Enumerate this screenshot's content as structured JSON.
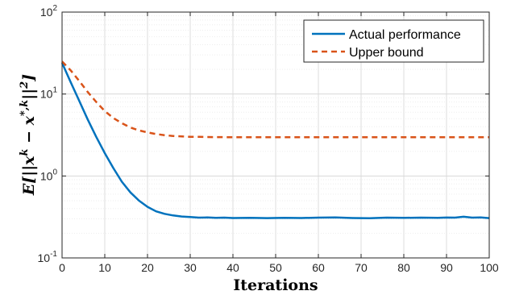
{
  "chart_data": {
    "type": "line",
    "title": "",
    "xlabel": "Iterations",
    "ylabel": "E[||x^k − x^{*,k}||^2]",
    "ylabel_parts": {
      "lead": "E[||",
      "x": "x",
      "sup_k": "k",
      "minus": " − ",
      "x2": "x",
      "sup_star": "*,k",
      "tail": "||",
      "sup_2": "2",
      "close": "]"
    },
    "xlim": [
      0,
      100
    ],
    "ylim": [
      0.1,
      100
    ],
    "yscale": "log",
    "grid": true,
    "legend_position": "top-right",
    "x_ticks": [
      "0",
      "10",
      "20",
      "30",
      "40",
      "50",
      "60",
      "70",
      "80",
      "90",
      "100"
    ],
    "y_ticks": [
      {
        "base": "10",
        "exp": "-1"
      },
      {
        "base": "10",
        "exp": "0"
      },
      {
        "base": "10",
        "exp": "1"
      },
      {
        "base": "10",
        "exp": "2"
      }
    ],
    "series": [
      {
        "name": "Actual performance",
        "color": "#0072BD",
        "style": "solid",
        "x": [
          0,
          2,
          4,
          6,
          8,
          10,
          12,
          14,
          16,
          18,
          20,
          22,
          24,
          26,
          28,
          30,
          32,
          34,
          36,
          38,
          40,
          44,
          48,
          52,
          56,
          60,
          64,
          68,
          72,
          76,
          80,
          84,
          88,
          90,
          92,
          94,
          96,
          98,
          100
        ],
        "y": [
          24,
          14,
          8.3,
          4.9,
          3.0,
          1.9,
          1.25,
          0.85,
          0.63,
          0.5,
          0.42,
          0.37,
          0.345,
          0.33,
          0.32,
          0.315,
          0.31,
          0.312,
          0.308,
          0.31,
          0.307,
          0.309,
          0.306,
          0.309,
          0.307,
          0.31,
          0.312,
          0.307,
          0.305,
          0.31,
          0.308,
          0.31,
          0.309,
          0.311,
          0.31,
          0.318,
          0.31,
          0.312,
          0.306
        ]
      },
      {
        "name": "Upper bound",
        "color": "#D95319",
        "style": "dashed",
        "x": [
          0,
          2,
          4,
          6,
          8,
          10,
          12,
          14,
          16,
          18,
          20,
          22,
          24,
          26,
          28,
          30,
          32,
          34,
          36,
          40,
          50,
          60,
          70,
          80,
          90,
          100
        ],
        "y": [
          25,
          19.5,
          14.5,
          10.6,
          8.0,
          6.2,
          5.1,
          4.4,
          3.9,
          3.6,
          3.4,
          3.25,
          3.15,
          3.08,
          3.04,
          3.01,
          3.0,
          2.99,
          2.98,
          2.97,
          2.97,
          2.97,
          2.97,
          2.97,
          2.97,
          2.97
        ]
      }
    ]
  }
}
